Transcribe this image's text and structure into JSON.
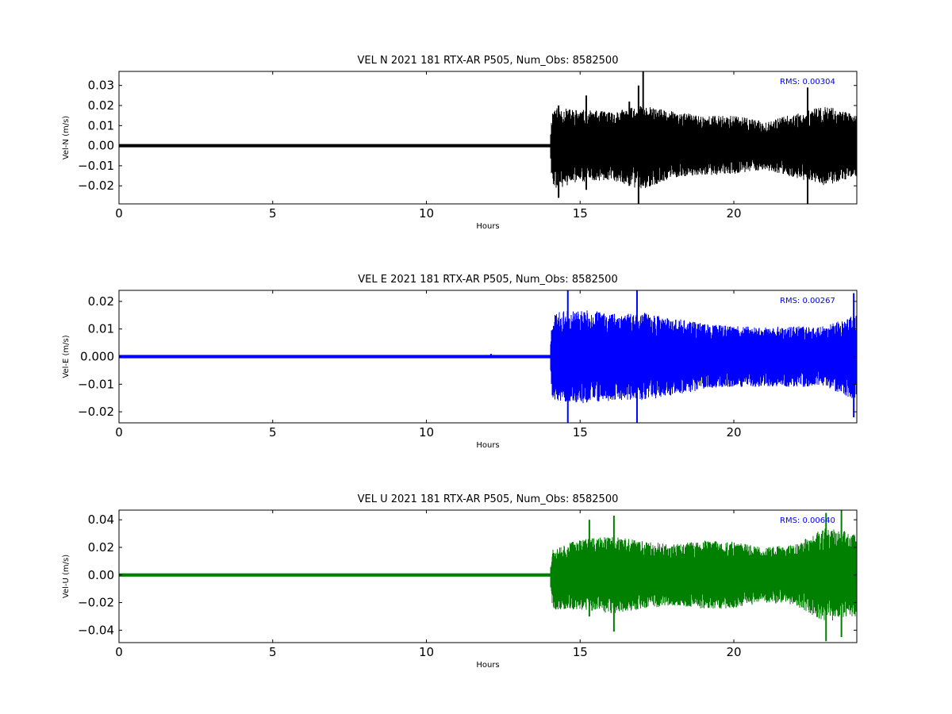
{
  "chart_data": [
    {
      "type": "line",
      "title": "VEL N 2021 181 RTX-AR  P505, Num_Obs: 8582500",
      "xlabel": "Hours",
      "ylabel": "Vel-N (m/s)",
      "xlim": [
        0,
        24
      ],
      "ylim": [
        -0.029,
        0.037
      ],
      "x_ticks": [
        0,
        5,
        10,
        15,
        20
      ],
      "y_ticks": [
        -0.02,
        -0.01,
        0.0,
        0.01,
        0.02,
        0.03
      ],
      "y_tick_labels": [
        "−0.02",
        "−0.01",
        "0.00",
        "0.01",
        "0.02",
        "0.03"
      ],
      "color": "#000000",
      "annotation": "RMS:  0.00304",
      "annotation_color": "#0000ff",
      "quiet_end_hour": 14.05,
      "envelope": [
        {
          "x": 0,
          "min": -0.0008,
          "max": 0.0008
        },
        {
          "x": 14.0,
          "min": -0.0008,
          "max": 0.0008
        },
        {
          "x": 14.1,
          "min": -0.022,
          "max": 0.019
        },
        {
          "x": 15,
          "min": -0.018,
          "max": 0.018
        },
        {
          "x": 16,
          "min": -0.017,
          "max": 0.017
        },
        {
          "x": 17,
          "min": -0.022,
          "max": 0.02
        },
        {
          "x": 18,
          "min": -0.016,
          "max": 0.017
        },
        {
          "x": 19,
          "min": -0.015,
          "max": 0.015
        },
        {
          "x": 20,
          "min": -0.014,
          "max": 0.015
        },
        {
          "x": 21,
          "min": -0.012,
          "max": 0.012
        },
        {
          "x": 22,
          "min": -0.016,
          "max": 0.016
        },
        {
          "x": 23,
          "min": -0.02,
          "max": 0.02
        },
        {
          "x": 24,
          "min": -0.015,
          "max": 0.015
        }
      ],
      "spikes": [
        {
          "x": 14.3,
          "min": -0.026,
          "max": 0.02
        },
        {
          "x": 15.2,
          "min": -0.022,
          "max": 0.025
        },
        {
          "x": 16.6,
          "min": -0.02,
          "max": 0.022
        },
        {
          "x": 16.9,
          "min": -0.029,
          "max": 0.03
        },
        {
          "x": 17.05,
          "min": -0.02,
          "max": 0.037
        },
        {
          "x": 22.4,
          "min": -0.029,
          "max": 0.029
        }
      ],
      "seed": 11
    },
    {
      "type": "line",
      "title": "VEL E 2021 181 RTX-AR  P505, Num_Obs: 8582500",
      "xlabel": "Hours",
      "ylabel": "Vel-E (m/s)",
      "xlim": [
        0,
        24
      ],
      "ylim": [
        -0.024,
        0.024
      ],
      "x_ticks": [
        0,
        5,
        10,
        15,
        20
      ],
      "y_ticks": [
        -0.02,
        -0.01,
        0.0,
        0.01,
        0.02
      ],
      "y_tick_labels": [
        "−0.02",
        "−0.01",
        "0.000",
        "0.01",
        "0.02"
      ],
      "color": "#0000ff",
      "annotation": "RMS:  0.00267",
      "annotation_color": "#0000ff",
      "quiet_end_hour": 14.05,
      "envelope": [
        {
          "x": 0,
          "min": -0.0006,
          "max": 0.0006
        },
        {
          "x": 14.0,
          "min": -0.0006,
          "max": 0.0006
        },
        {
          "x": 14.1,
          "min": -0.016,
          "max": 0.016
        },
        {
          "x": 15,
          "min": -0.017,
          "max": 0.017
        },
        {
          "x": 16,
          "min": -0.016,
          "max": 0.016
        },
        {
          "x": 17,
          "min": -0.016,
          "max": 0.016
        },
        {
          "x": 18,
          "min": -0.014,
          "max": 0.014
        },
        {
          "x": 19,
          "min": -0.012,
          "max": 0.012
        },
        {
          "x": 20,
          "min": -0.011,
          "max": 0.011
        },
        {
          "x": 21,
          "min": -0.011,
          "max": 0.011
        },
        {
          "x": 22,
          "min": -0.011,
          "max": 0.011
        },
        {
          "x": 23,
          "min": -0.011,
          "max": 0.011
        },
        {
          "x": 24,
          "min": -0.016,
          "max": 0.016
        }
      ],
      "spikes": [
        {
          "x": 14.6,
          "min": -0.024,
          "max": 0.024
        },
        {
          "x": 16.85,
          "min": -0.024,
          "max": 0.024
        },
        {
          "x": 23.9,
          "min": -0.022,
          "max": 0.023
        },
        {
          "x": 12.1,
          "min": -0.0005,
          "max": 0.001
        }
      ],
      "seed": 23
    },
    {
      "type": "line",
      "title": "VEL U 2021 181 RTX-AR  P505, Num_Obs: 8582500",
      "xlabel": "Hours",
      "ylabel": "Vel-U (m/s)",
      "xlim": [
        0,
        24
      ],
      "ylim": [
        -0.049,
        0.047
      ],
      "x_ticks": [
        0,
        5,
        10,
        15,
        20
      ],
      "y_ticks": [
        -0.04,
        -0.02,
        0.0,
        0.02,
        0.04
      ],
      "y_tick_labels": [
        "−0.04",
        "−0.02",
        "0.00",
        "0.02",
        "0.04"
      ],
      "color": "#008000",
      "annotation": "RMS:  0.00640",
      "annotation_color": "#0000ff",
      "quiet_end_hour": 14.05,
      "envelope": [
        {
          "x": 0,
          "min": -0.0012,
          "max": 0.0012
        },
        {
          "x": 14.0,
          "min": -0.0012,
          "max": 0.0012
        },
        {
          "x": 14.1,
          "min": -0.025,
          "max": 0.02
        },
        {
          "x": 15,
          "min": -0.025,
          "max": 0.026
        },
        {
          "x": 16,
          "min": -0.028,
          "max": 0.028
        },
        {
          "x": 17,
          "min": -0.025,
          "max": 0.025
        },
        {
          "x": 18,
          "min": -0.022,
          "max": 0.022
        },
        {
          "x": 19,
          "min": -0.025,
          "max": 0.025
        },
        {
          "x": 20,
          "min": -0.024,
          "max": 0.024
        },
        {
          "x": 21,
          "min": -0.02,
          "max": 0.02
        },
        {
          "x": 22,
          "min": -0.022,
          "max": 0.022
        },
        {
          "x": 23,
          "min": -0.035,
          "max": 0.035
        },
        {
          "x": 24,
          "min": -0.03,
          "max": 0.03
        }
      ],
      "spikes": [
        {
          "x": 15.3,
          "min": -0.03,
          "max": 0.04
        },
        {
          "x": 16.1,
          "min": -0.041,
          "max": 0.043
        },
        {
          "x": 23.0,
          "min": -0.048,
          "max": 0.045
        },
        {
          "x": 23.5,
          "min": -0.045,
          "max": 0.047
        }
      ],
      "seed": 37
    }
  ]
}
